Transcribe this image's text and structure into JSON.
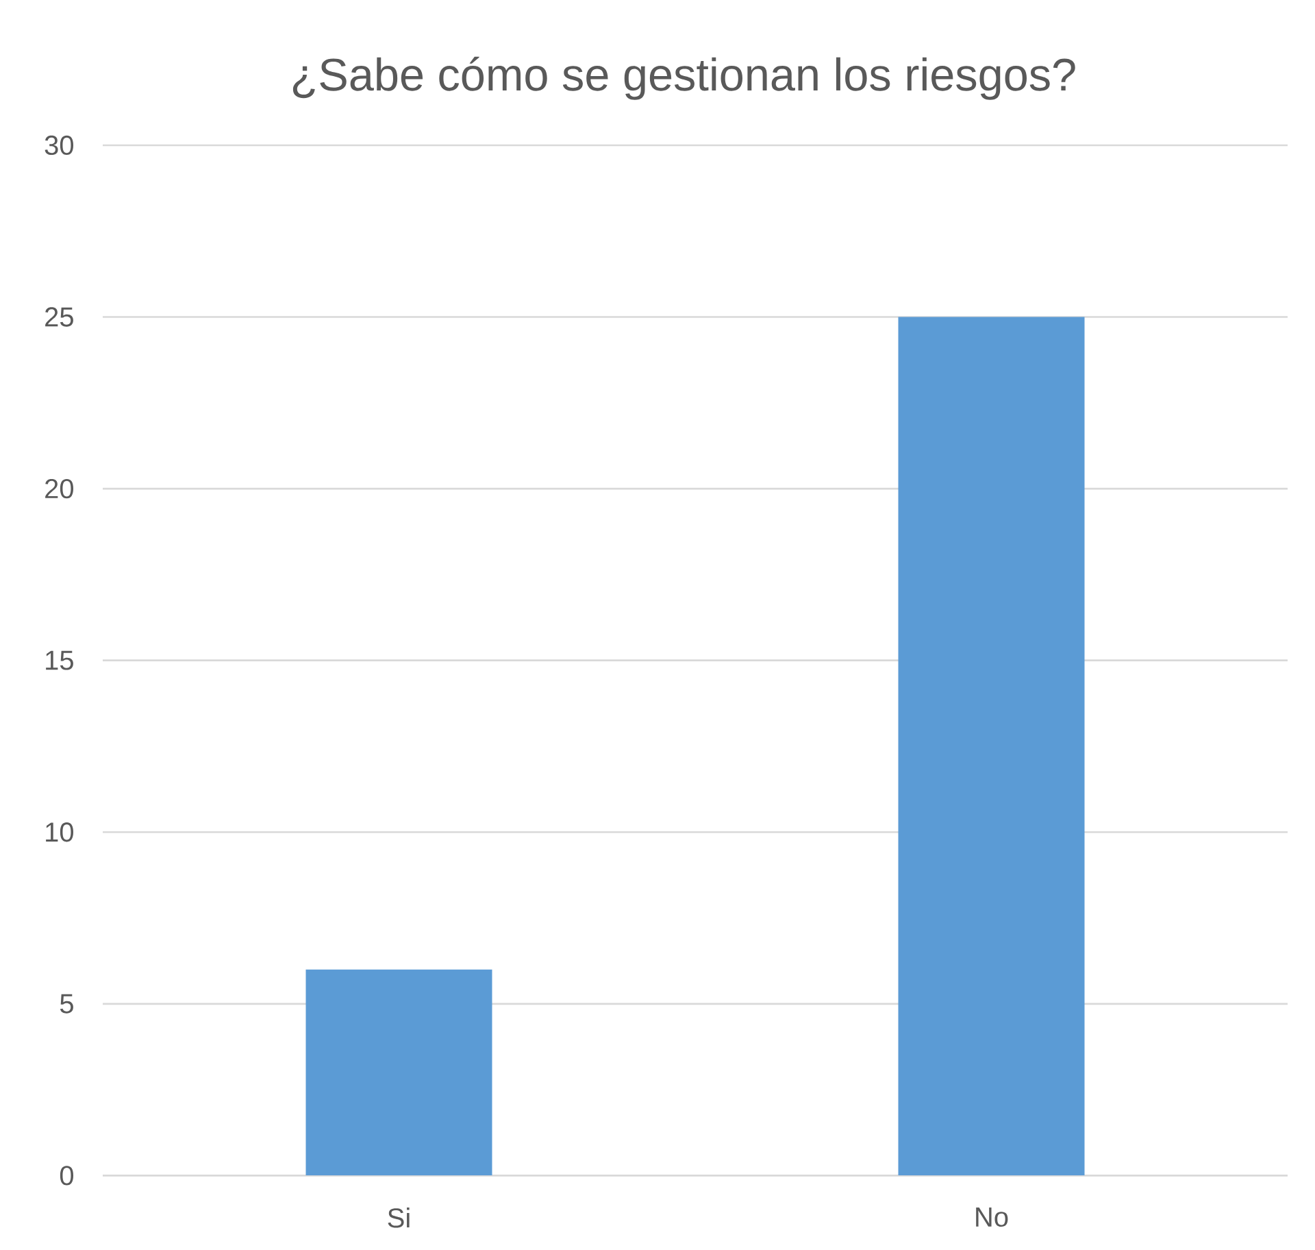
{
  "chart_data": {
    "type": "bar",
    "title": "¿Sabe cómo se gestionan los riesgos?",
    "categories": [
      "Si",
      "No"
    ],
    "values": [
      6,
      25
    ],
    "color": "#5b9bd5",
    "ylim": [
      0,
      30
    ],
    "yticks": [
      0,
      5,
      10,
      15,
      20,
      25,
      30
    ],
    "grid": "y"
  }
}
